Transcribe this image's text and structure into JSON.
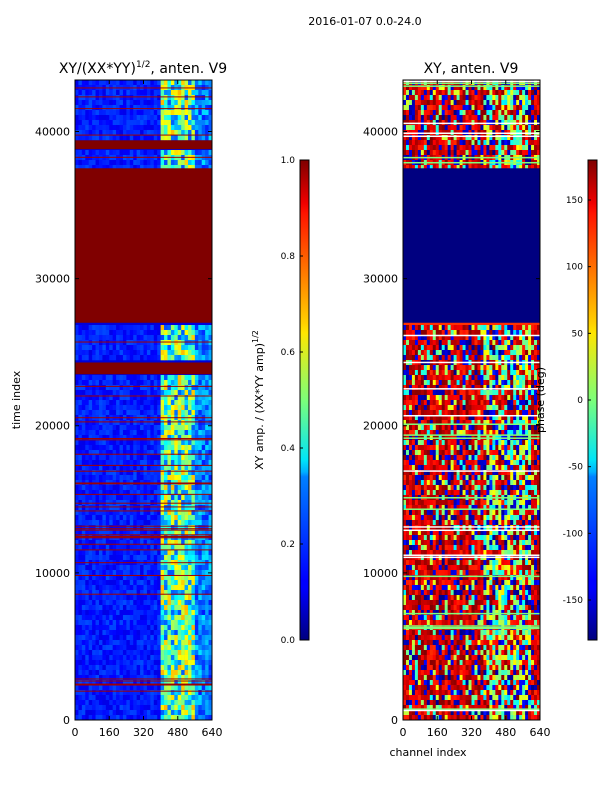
{
  "figure": {
    "suptitle": "2016-01-07 0.0-24.0"
  },
  "chart_data": [
    {
      "type": "heatmap",
      "title": "XY/(XX*YY)",
      "title_exponent": "1/2",
      "title_suffix": ", anten. V9",
      "xlabel": "",
      "ylabel": "time index",
      "xlim": [
        0,
        640
      ],
      "ylim": [
        0,
        43500
      ],
      "xticks": [
        "0",
        "160",
        "320",
        "480",
        "640"
      ],
      "yticks": [
        "0",
        "10000",
        "20000",
        "30000",
        "40000"
      ],
      "xtick_values": [
        0,
        160,
        320,
        480,
        640
      ],
      "ytick_values": [
        0,
        10000,
        20000,
        30000,
        40000
      ],
      "colormap": "jet",
      "colorbar": {
        "label": "XY amp. / (XX*YY amp)",
        "label_exponent": "1/2",
        "range": [
          0.0,
          1.0
        ],
        "ticks": [
          "0.0",
          "0.2",
          "0.4",
          "0.6",
          "0.8",
          "1.0"
        ],
        "tick_values": [
          0.0,
          0.2,
          0.4,
          0.6,
          0.8,
          1.0
        ]
      },
      "saturated_bands": [
        {
          "y0": 27000,
          "y1": 37500,
          "value": 1.0
        },
        {
          "y0": 23500,
          "y1": 24300,
          "value": 1.0
        },
        {
          "y0": 38800,
          "y1": 39400,
          "value": 1.0
        }
      ],
      "bright_channel_range": [
        400,
        560
      ]
    },
    {
      "type": "heatmap",
      "title": "XY, anten. V9",
      "xlabel": "channel index",
      "ylabel": "",
      "xlim": [
        0,
        640
      ],
      "ylim": [
        0,
        43500
      ],
      "xticks": [
        "0",
        "160",
        "320",
        "480",
        "640"
      ],
      "yticks": [
        "0",
        "10000",
        "20000",
        "30000",
        "40000"
      ],
      "xtick_values": [
        0,
        160,
        320,
        480,
        640
      ],
      "ytick_values": [
        0,
        10000,
        20000,
        30000,
        40000
      ],
      "colormap": "jet",
      "colorbar": {
        "label": "phase (deg)",
        "range": [
          -180,
          180
        ],
        "ticks": [
          "-150",
          "-100",
          "-50",
          "0",
          "50",
          "100",
          "150"
        ],
        "tick_values": [
          -150,
          -100,
          -50,
          0,
          50,
          100,
          150
        ]
      },
      "flagged_bands": [
        {
          "y0": 27000,
          "y1": 37500,
          "value": -180
        }
      ]
    }
  ]
}
